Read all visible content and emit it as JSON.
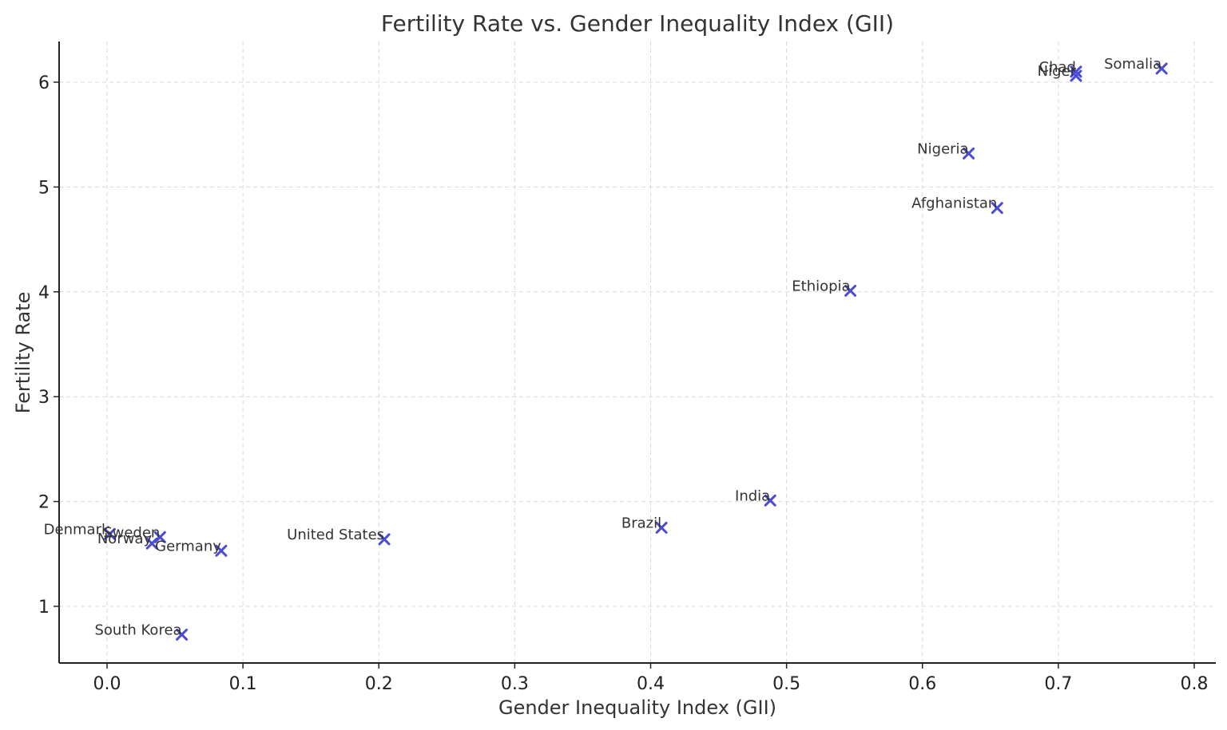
{
  "chart_data": {
    "type": "scatter",
    "title": "Fertility Rate vs. Gender Inequality Index (GII)",
    "xlabel": "Gender Inequality Index (GII)",
    "ylabel": "Fertility Rate",
    "xlim": [
      -0.035,
      0.815
    ],
    "ylim": [
      0.45,
      6.4
    ],
    "x_ticks": [
      "0.0",
      "0.1",
      "0.2",
      "0.3",
      "0.4",
      "0.5",
      "0.6",
      "0.7",
      "0.8"
    ],
    "y_ticks": [
      "1",
      "2",
      "3",
      "4",
      "5",
      "6"
    ],
    "grid": true,
    "marker": "x",
    "marker_color": "#4b4bd6",
    "points": [
      {
        "label": "Chad",
        "x": 0.713,
        "y": 6.1
      },
      {
        "label": "Niger",
        "x": 0.713,
        "y": 6.06
      },
      {
        "label": "Somalia",
        "x": 0.776,
        "y": 6.13
      },
      {
        "label": "Nigeria",
        "x": 0.634,
        "y": 5.32
      },
      {
        "label": "Afghanistan",
        "x": 0.655,
        "y": 4.8
      },
      {
        "label": "Ethiopia",
        "x": 0.547,
        "y": 4.01
      },
      {
        "label": "India",
        "x": 0.488,
        "y": 2.01
      },
      {
        "label": "Brazil",
        "x": 0.408,
        "y": 1.75
      },
      {
        "label": "United States",
        "x": 0.204,
        "y": 1.64
      },
      {
        "label": "Denmark",
        "x": 0.002,
        "y": 1.69
      },
      {
        "label": "Sweden",
        "x": 0.039,
        "y": 1.66
      },
      {
        "label": "Norway",
        "x": 0.033,
        "y": 1.6
      },
      {
        "label": "Germany",
        "x": 0.084,
        "y": 1.53
      },
      {
        "label": "South Korea",
        "x": 0.055,
        "y": 0.73
      }
    ]
  }
}
